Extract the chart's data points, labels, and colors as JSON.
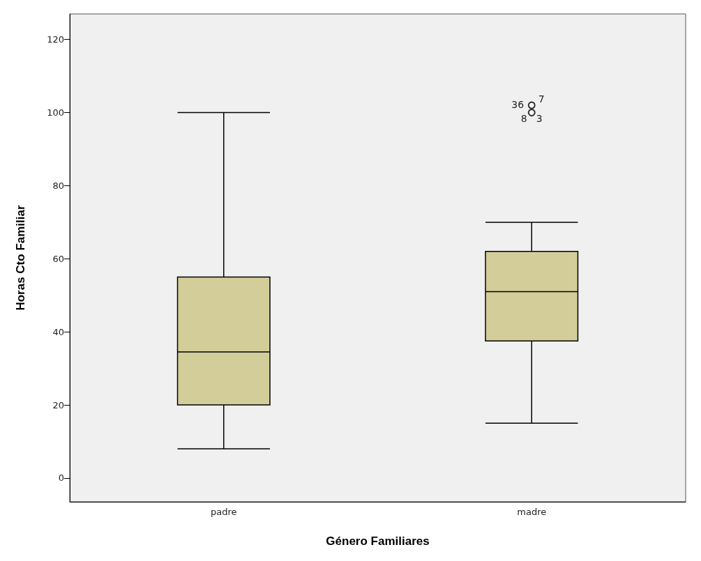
{
  "chart_data": {
    "type": "box",
    "xlabel": "Género Familiares",
    "ylabel": "Horas Cto Familiar",
    "categories": [
      "padre",
      "madre"
    ],
    "series": [
      {
        "color": "#d3ce99",
        "boxes": [
          {
            "low": 8,
            "q1": 20,
            "median": 34.5,
            "q3": 55,
            "high": 100
          },
          {
            "low": 15,
            "q1": 37.5,
            "median": 51,
            "q3": 62,
            "high": 70,
            "outliers": [
              100,
              102
            ]
          }
        ]
      }
    ],
    "ylim": [
      -6.5,
      127
    ],
    "yticks": [
      0,
      20,
      40,
      60,
      80,
      100,
      120
    ],
    "annotations": [
      "36",
      "7",
      "8",
      "3"
    ]
  }
}
